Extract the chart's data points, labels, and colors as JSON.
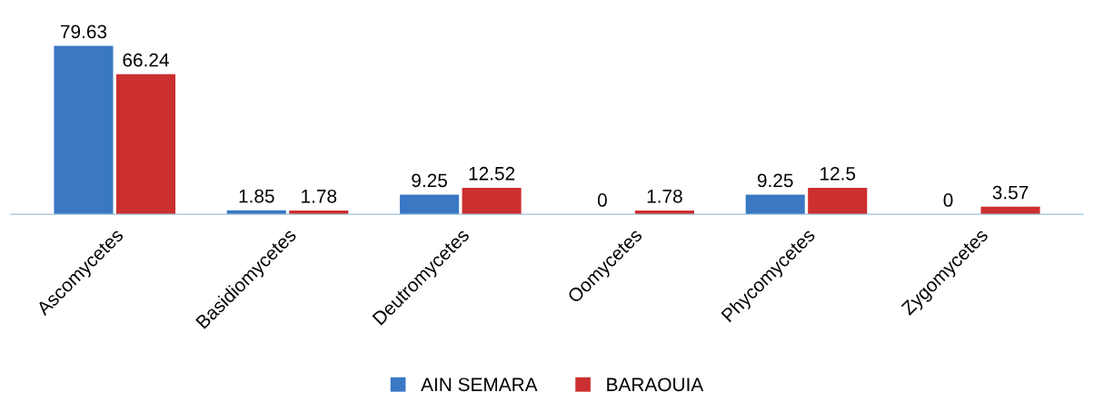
{
  "chart_data": {
    "type": "bar",
    "categories": [
      "Ascomycetes",
      "Basidiomycetes",
      "Deutromycetes",
      "Oomycetes",
      "Phycomycetes",
      "Zygomycetes"
    ],
    "series": [
      {
        "name": "AIN SEMARA",
        "color": "#3a78c4",
        "values": [
          79.63,
          1.85,
          9.25,
          0,
          9.25,
          0
        ]
      },
      {
        "name": "BARAOUIA",
        "color": "#cc2f2f",
        "values": [
          66.24,
          1.78,
          12.52,
          1.78,
          12.5,
          3.57
        ]
      }
    ],
    "data_labels": true,
    "legend": "bottom",
    "grid": false
  }
}
